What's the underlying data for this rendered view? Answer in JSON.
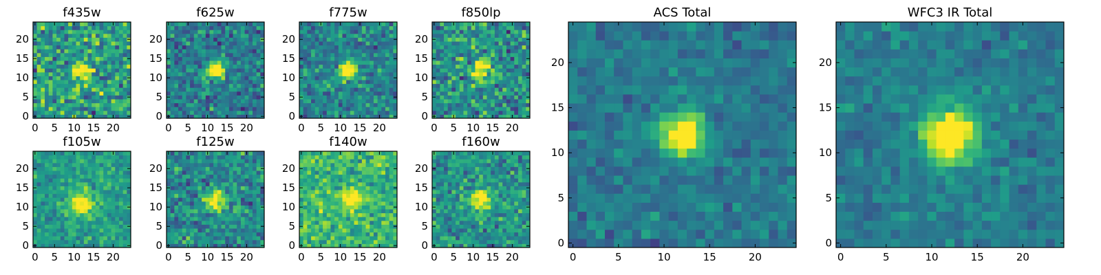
{
  "chart_data": [
    {
      "type": "heatmap",
      "title": "f435w",
      "grid_size": 25,
      "source_center": [
        12,
        12
      ],
      "source_radius": 1.5,
      "noise": 0.33,
      "base": 0.55,
      "source_strength": 0.45,
      "xticks": [
        0,
        5,
        10,
        15,
        20
      ],
      "yticks": [
        0,
        5,
        10,
        15,
        20
      ],
      "seed": 11
    },
    {
      "type": "heatmap",
      "title": "f625w",
      "grid_size": 25,
      "source_center": [
        12,
        12
      ],
      "source_radius": 1.6,
      "noise": 0.25,
      "base": 0.42,
      "source_strength": 0.55,
      "xticks": [
        0,
        5,
        10,
        15,
        20
      ],
      "yticks": [
        0,
        5,
        10,
        15,
        20
      ],
      "seed": 23
    },
    {
      "type": "heatmap",
      "title": "f775w",
      "grid_size": 25,
      "source_center": [
        12,
        12
      ],
      "source_radius": 1.6,
      "noise": 0.24,
      "base": 0.45,
      "source_strength": 0.55,
      "xticks": [
        0,
        5,
        10,
        15,
        20
      ],
      "yticks": [
        0,
        5,
        10,
        15,
        20
      ],
      "seed": 37
    },
    {
      "type": "heatmap",
      "title": "f850lp",
      "grid_size": 25,
      "source_center": [
        12,
        12
      ],
      "source_radius": 1.6,
      "noise": 0.3,
      "base": 0.5,
      "source_strength": 0.5,
      "xticks": [
        0,
        5,
        10,
        15,
        20
      ],
      "yticks": [
        0,
        5,
        10,
        15,
        20
      ],
      "seed": 41
    },
    {
      "type": "heatmap",
      "title": "f105w",
      "grid_size": 25,
      "source_center": [
        12,
        11
      ],
      "source_radius": 2.2,
      "noise": 0.18,
      "base": 0.55,
      "source_strength": 0.4,
      "xticks": [
        0,
        5,
        10,
        15,
        20
      ],
      "yticks": [
        0,
        5,
        10,
        15,
        20
      ],
      "seed": 53
    },
    {
      "type": "heatmap",
      "title": "f125w",
      "grid_size": 25,
      "source_center": [
        12,
        12
      ],
      "source_radius": 1.8,
      "noise": 0.25,
      "base": 0.48,
      "source_strength": 0.48,
      "xticks": [
        0,
        5,
        10,
        15,
        20
      ],
      "yticks": [
        0,
        5,
        10,
        15,
        20
      ],
      "seed": 67
    },
    {
      "type": "heatmap",
      "title": "f140w",
      "grid_size": 25,
      "source_center": [
        13,
        12
      ],
      "source_radius": 1.8,
      "noise": 0.22,
      "base": 0.66,
      "source_strength": 0.32,
      "xticks": [
        0,
        5,
        10,
        15,
        20
      ],
      "yticks": [
        0,
        5,
        10,
        15,
        20
      ],
      "seed": 71
    },
    {
      "type": "heatmap",
      "title": "f160w",
      "grid_size": 25,
      "source_center": [
        12,
        12
      ],
      "source_radius": 1.8,
      "noise": 0.24,
      "base": 0.52,
      "source_strength": 0.45,
      "xticks": [
        0,
        5,
        10,
        15,
        20
      ],
      "yticks": [
        0,
        5,
        10,
        15,
        20
      ],
      "seed": 83
    },
    {
      "type": "heatmap",
      "title": "ACS Total",
      "grid_size": 25,
      "source_center": [
        12,
        12
      ],
      "source_radius": 1.6,
      "noise": 0.14,
      "base": 0.4,
      "source_strength": 0.6,
      "xticks": [
        0,
        5,
        10,
        15,
        20
      ],
      "yticks": [
        0,
        5,
        10,
        15,
        20
      ],
      "seed": 97
    },
    {
      "type": "heatmap",
      "title": "WFC3 IR Total",
      "grid_size": 25,
      "source_center": [
        12,
        12
      ],
      "source_radius": 2.1,
      "noise": 0.13,
      "base": 0.42,
      "source_strength": 0.58,
      "xticks": [
        0,
        5,
        10,
        15,
        20
      ],
      "yticks": [
        0,
        5,
        10,
        15,
        20
      ],
      "seed": 109
    }
  ],
  "colormap": [
    "#440154",
    "#482878",
    "#3e4989",
    "#31688e",
    "#26828e",
    "#1f9e89",
    "#35b779",
    "#6ece58",
    "#b5de2b",
    "#fde725"
  ]
}
